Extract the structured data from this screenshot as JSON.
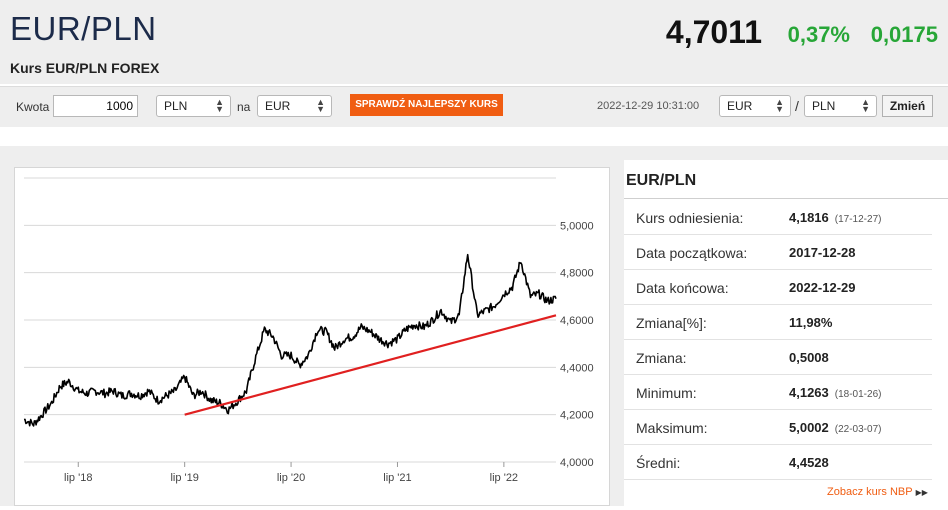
{
  "header": {
    "pair": "EUR/PLN",
    "subtitle": "Kurs EUR/PLN FOREX",
    "price": "4,7011",
    "change_pct": "0,37%",
    "change_abs": "0,0175"
  },
  "toolbar": {
    "amount_label": "Kwota",
    "amount_value": "1000",
    "from_currency": "PLN",
    "na_label": "na",
    "to_currency": "EUR",
    "best_rate_button": "SPRAWDŹ NAJLEPSZY KURS",
    "timestamp": "2022-12-29 10:31:00",
    "pair_base": "EUR",
    "pair_sep": "/",
    "pair_quote": "PLN",
    "change_button": "Zmień"
  },
  "stats": {
    "title": "EUR/PLN",
    "rows": [
      {
        "label": "Kurs odniesienia:",
        "value": "4,1816",
        "date": "(17-12-27)"
      },
      {
        "label": "Data początkowa:",
        "value": "2017-12-28",
        "date": ""
      },
      {
        "label": "Data końcowa:",
        "value": "2022-12-29",
        "date": ""
      },
      {
        "label": "Zmiana[%]:",
        "value": "11,98%",
        "date": ""
      },
      {
        "label": "Zmiana:",
        "value": "0,5008",
        "date": ""
      },
      {
        "label": "Minimum:",
        "value": "4,1263",
        "date": "(18-01-26)"
      },
      {
        "label": "Maksimum:",
        "value": "5,0002",
        "date": "(22-03-07)"
      },
      {
        "label": "Średni:",
        "value": "4,4528",
        "date": ""
      }
    ],
    "nbp_link": "Zobacz kurs NBP"
  },
  "colors": {
    "positive": "#27a637",
    "accent": "#f05d12",
    "trendline": "#e02020",
    "title": "#1c2b4a"
  },
  "chart_data": {
    "type": "line",
    "x_tick_labels": [
      "lip '18",
      "lip '19",
      "lip '20",
      "lip '21",
      "lip '22"
    ],
    "x_tick_values": [
      2018.5,
      2019.5,
      2020.5,
      2021.5,
      2022.5
    ],
    "y_tick_labels": [
      "5,0000",
      "4,8000",
      "4,6000",
      "4,4000",
      "4,2000",
      "4,0000"
    ],
    "y_tick_values": [
      5.0,
      4.8,
      4.6,
      4.4,
      4.2,
      4.0
    ],
    "xlim": [
      2017.99,
      2022.99
    ],
    "ylim": [
      4.0,
      5.2
    ],
    "series": [
      {
        "x": [
          2017.99,
          2018.08,
          2018.16,
          2018.25,
          2018.33,
          2018.41,
          2018.5,
          2018.58,
          2018.66,
          2018.75,
          2018.83,
          2018.91,
          2019.0,
          2019.08,
          2019.16,
          2019.25,
          2019.33,
          2019.41,
          2019.5,
          2019.58,
          2019.66,
          2019.75,
          2019.83,
          2019.91,
          2020.0,
          2020.08,
          2020.16,
          2020.25,
          2020.33,
          2020.41,
          2020.5,
          2020.58,
          2020.66,
          2020.75,
          2020.83,
          2020.91,
          2021.0,
          2021.08,
          2021.16,
          2021.25,
          2021.33,
          2021.41,
          2021.5,
          2021.58,
          2021.66,
          2021.75,
          2021.83,
          2021.91,
          2022.0,
          2022.08,
          2022.16,
          2022.25,
          2022.33,
          2022.41,
          2022.5,
          2022.58,
          2022.66,
          2022.75,
          2022.83,
          2022.91,
          2022.99
        ],
        "y": [
          4.18,
          4.16,
          4.2,
          4.25,
          4.32,
          4.34,
          4.3,
          4.29,
          4.3,
          4.29,
          4.3,
          4.28,
          4.29,
          4.28,
          4.3,
          4.26,
          4.28,
          4.3,
          4.36,
          4.28,
          4.3,
          4.26,
          4.25,
          4.22,
          4.26,
          4.3,
          4.43,
          4.56,
          4.53,
          4.45,
          4.45,
          4.41,
          4.45,
          4.56,
          4.55,
          4.48,
          4.52,
          4.53,
          4.57,
          4.55,
          4.52,
          4.5,
          4.52,
          4.56,
          4.58,
          4.57,
          4.6,
          4.64,
          4.59,
          4.62,
          4.88,
          4.62,
          4.64,
          4.66,
          4.71,
          4.74,
          4.85,
          4.7,
          4.71,
          4.68,
          4.69
        ]
      }
    ],
    "trendline": {
      "x": [
        2019.5,
        2022.99
      ],
      "y": [
        4.2,
        4.62
      ]
    }
  }
}
